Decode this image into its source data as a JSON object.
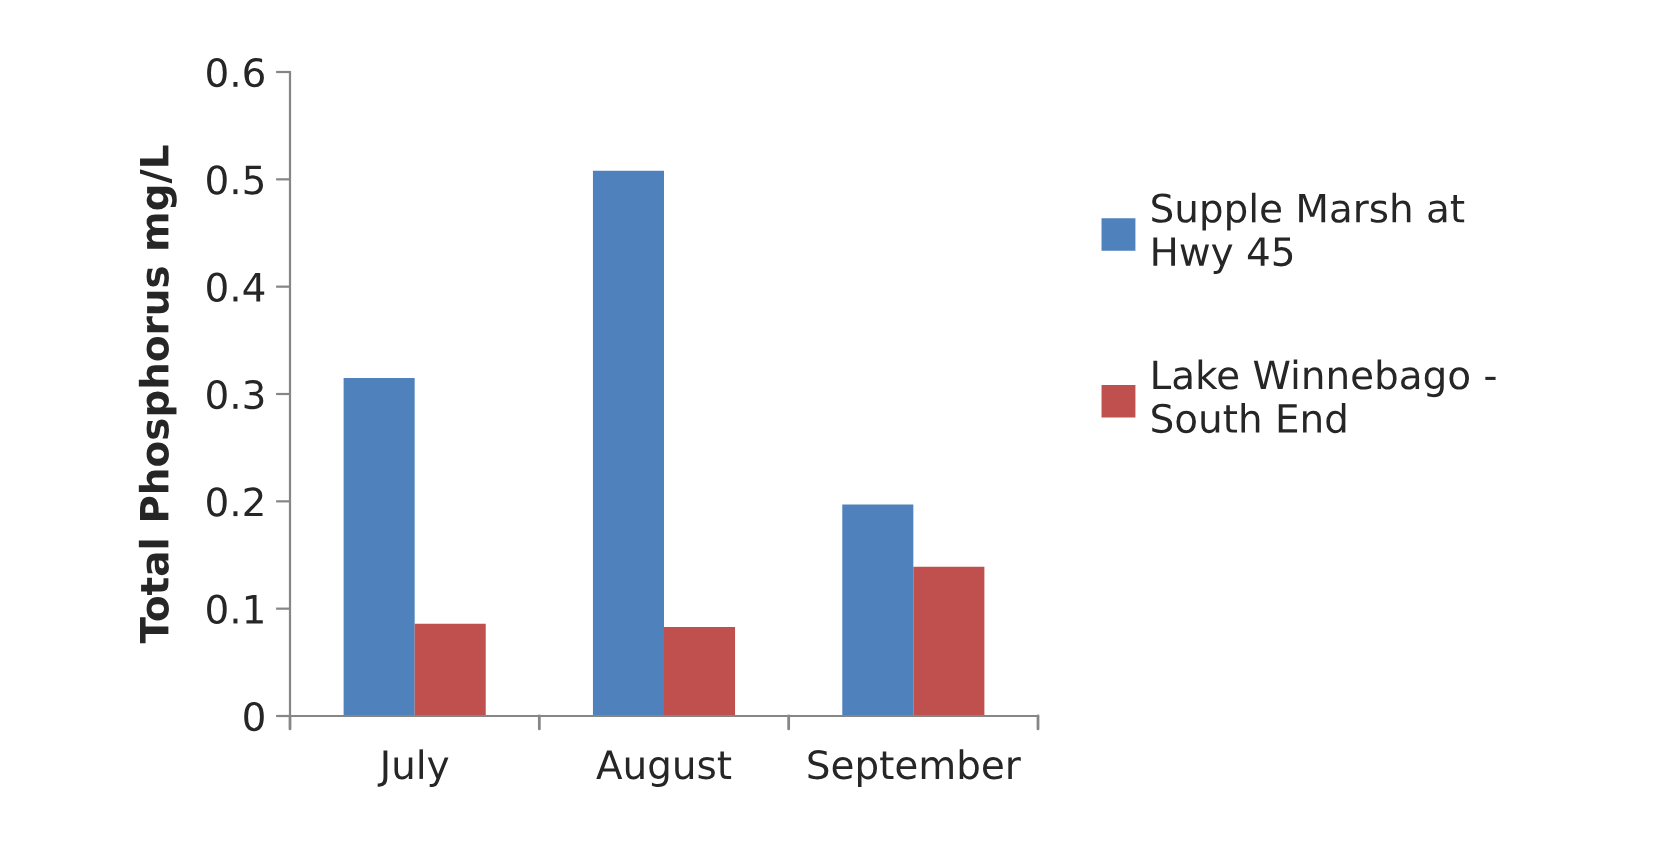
{
  "chart_data": {
    "type": "bar",
    "ylabel": "Total Phosphorus mg/L",
    "categories": [
      "July",
      "August",
      "September"
    ],
    "series": [
      {
        "name": "Supple Marsh at\nHwy 45",
        "color": "#4f81bd",
        "values": [
          0.315,
          0.508,
          0.197
        ]
      },
      {
        "name": "Lake Winnebago -\nSouth End",
        "color": "#c0504d",
        "values": [
          0.086,
          0.083,
          0.139
        ]
      }
    ],
    "ylim": [
      0,
      0.6
    ],
    "yticks": [
      {
        "value": 0,
        "label": "0"
      },
      0.1,
      0.2,
      0.3,
      0.4,
      0.5,
      0.6
    ],
    "grid": false,
    "legend": "right"
  }
}
